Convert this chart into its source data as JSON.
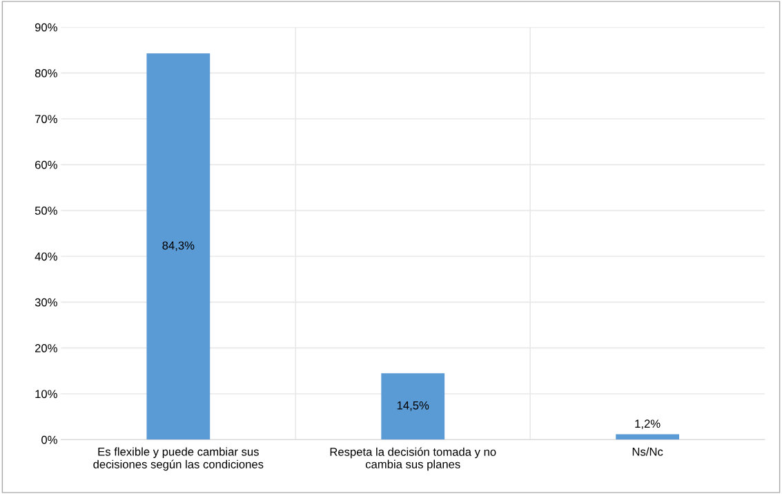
{
  "chart_data": {
    "type": "bar",
    "categories": [
      "Es flexible y puede cambiar sus\ndecisiones según las condiciones",
      "Respeta la decisión tomada y no\ncambia sus planes",
      "Ns/Nc"
    ],
    "values": [
      84.3,
      14.5,
      1.2
    ],
    "value_labels": [
      "84,3%",
      "14,5%",
      "1,2%"
    ],
    "color": "#5b9bd5",
    "ylim": [
      0,
      90
    ],
    "yticks": [
      {
        "value": 0,
        "label": "0%"
      },
      {
        "value": 10,
        "label": "10%"
      },
      {
        "value": 20,
        "label": "20%"
      },
      {
        "value": 30,
        "label": "30%"
      },
      {
        "value": 40,
        "label": "40%"
      },
      {
        "value": 50,
        "label": "50%"
      },
      {
        "value": 60,
        "label": "60%"
      },
      {
        "value": 70,
        "label": "70%"
      },
      {
        "value": 80,
        "label": "80%"
      },
      {
        "value": 90,
        "label": "90%"
      }
    ],
    "grid": true
  }
}
